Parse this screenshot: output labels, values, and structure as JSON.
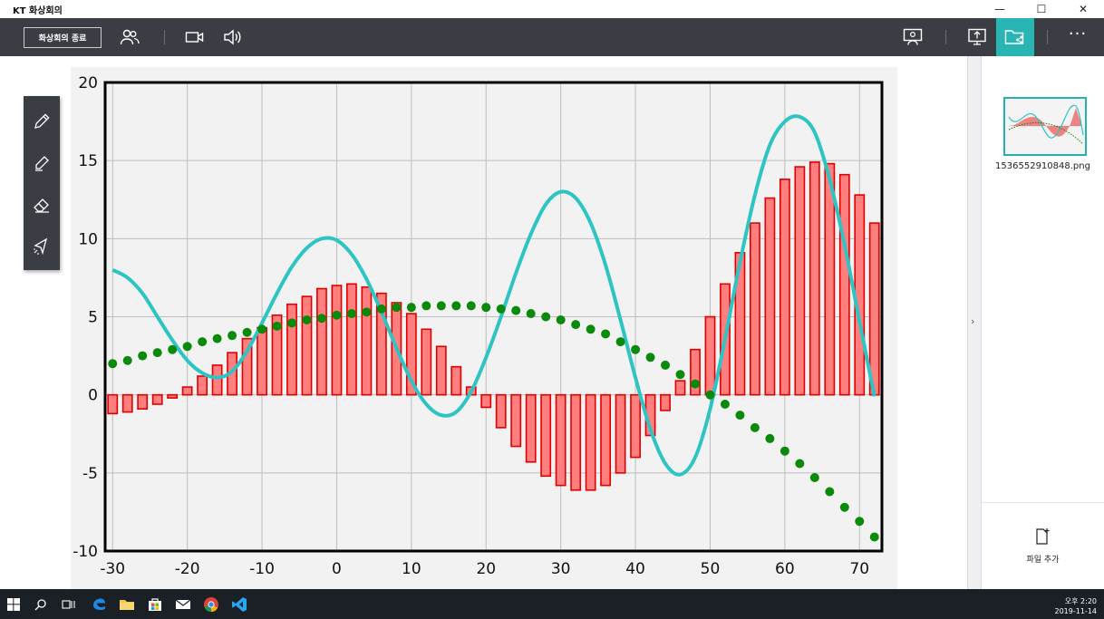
{
  "window": {
    "title": "KT 화상회의",
    "minimize": "—",
    "maximize": "☐",
    "close": "✕"
  },
  "toolbar": {
    "end_meeting_label": "화상회의 종료",
    "icons": [
      "participants-icon",
      "camera-icon",
      "speaker-icon",
      "presenter-icon",
      "screen-share-icon",
      "file-share-icon",
      "more-icon"
    ],
    "more_label": "···",
    "accent": "#28b5b4"
  },
  "drawing_tools": [
    "pen-icon",
    "highlighter-icon",
    "eraser-icon",
    "laser-pointer-icon"
  ],
  "side_panel": {
    "thumbnail_file": "1536552910848.png",
    "add_file_label": "파일 추가",
    "collapse_glyph": "›"
  },
  "taskbar": {
    "time": "오후 2:20",
    "date": "2019-11-14",
    "icons": [
      "windows-start-icon",
      "search-icon",
      "task-view-icon",
      "edge-icon",
      "file-explorer-icon",
      "store-icon",
      "mail-icon",
      "chrome-icon",
      "vscode-icon"
    ]
  },
  "chart_data": {
    "type": "bar+line+scatter",
    "xlim": [
      -31,
      73
    ],
    "ylim": [
      -10,
      20
    ],
    "xticks": [
      "-30",
      "-20",
      "-10",
      "0",
      "10",
      "20",
      "30",
      "40",
      "50",
      "60",
      "70"
    ],
    "yticks": [
      "-10",
      "-5",
      "0",
      "5",
      "10",
      "15",
      "20"
    ],
    "grid": true,
    "colors": {
      "bar_fill": "#ff7f7f",
      "bar_edge": "#e00000",
      "line": "#2ec4c4",
      "dots": "#0a8a0a"
    },
    "bars": {
      "x": [
        -30,
        -28,
        -26,
        -24,
        -22,
        -20,
        -18,
        -16,
        -14,
        -12,
        -10,
        -8,
        -6,
        -4,
        -2,
        0,
        2,
        4,
        6,
        8,
        10,
        12,
        14,
        16,
        18,
        20,
        22,
        24,
        26,
        28,
        30,
        32,
        34,
        36,
        38,
        40,
        42,
        44,
        46,
        48,
        50,
        52,
        54,
        56,
        58,
        60,
        62,
        64,
        66,
        68,
        70,
        72
      ],
      "values": [
        -1.2,
        -1.1,
        -0.9,
        -0.6,
        -0.2,
        0.5,
        1.2,
        1.9,
        2.7,
        3.6,
        4.3,
        5.1,
        5.8,
        6.3,
        6.8,
        7.0,
        7.1,
        6.9,
        6.5,
        5.9,
        5.2,
        4.2,
        3.1,
        1.8,
        0.5,
        -0.8,
        -2.1,
        -3.3,
        -4.3,
        -5.2,
        -5.8,
        -6.1,
        -6.1,
        -5.8,
        -5.0,
        -4.0,
        -2.6,
        -1.0,
        0.9,
        2.9,
        5.0,
        7.1,
        9.1,
        11.0,
        12.6,
        13.8,
        14.6,
        14.9,
        14.8,
        14.1,
        12.8,
        11.0
      ]
    },
    "line": {
      "x": [
        -30,
        -28,
        -26,
        -24,
        -22,
        -20,
        -18,
        -16,
        -14,
        -12,
        -10,
        -8,
        -6,
        -4,
        -2,
        0,
        2,
        4,
        6,
        8,
        10,
        12,
        14,
        16,
        18,
        20,
        22,
        24,
        26,
        28,
        30,
        32,
        34,
        36,
        38,
        40,
        42,
        44,
        46,
        48,
        50,
        52,
        54,
        56,
        58,
        60,
        62,
        64,
        66,
        68,
        70,
        72
      ],
      "y": [
        8.0,
        7.5,
        6.5,
        5.0,
        3.5,
        2.2,
        1.4,
        1.1,
        1.5,
        2.8,
        4.6,
        6.5,
        8.2,
        9.4,
        10.0,
        9.9,
        9.0,
        7.4,
        5.3,
        3.0,
        0.9,
        -0.6,
        -1.3,
        -1.1,
        0.2,
        2.4,
        5.0,
        7.8,
        10.3,
        12.2,
        13.0,
        12.6,
        11.0,
        8.3,
        4.8,
        1.1,
        -2.2,
        -4.4,
        -5.1,
        -4.0,
        -0.9,
        3.6,
        8.5,
        12.8,
        16.0,
        17.5,
        17.8,
        16.8,
        13.8,
        9.6,
        4.7,
        -0.1
      ]
    },
    "dots": {
      "x": [
        -30,
        -28,
        -26,
        -24,
        -22,
        -20,
        -18,
        -16,
        -14,
        -12,
        -10,
        -8,
        -6,
        -4,
        -2,
        0,
        2,
        4,
        6,
        8,
        10,
        12,
        14,
        16,
        18,
        20,
        22,
        24,
        26,
        28,
        30,
        32,
        34,
        36,
        38,
        40,
        42,
        44,
        46,
        48,
        50,
        52,
        54,
        56,
        58,
        60,
        62,
        64,
        66,
        68,
        70,
        72
      ],
      "y": [
        2.0,
        2.2,
        2.5,
        2.7,
        2.9,
        3.1,
        3.4,
        3.6,
        3.8,
        4.0,
        4.2,
        4.4,
        4.6,
        4.8,
        4.9,
        5.1,
        5.2,
        5.3,
        5.5,
        5.6,
        5.6,
        5.7,
        5.7,
        5.7,
        5.7,
        5.6,
        5.5,
        5.4,
        5.2,
        5.0,
        4.8,
        4.5,
        4.2,
        3.9,
        3.4,
        2.9,
        2.4,
        1.9,
        1.3,
        0.7,
        0.0,
        -0.6,
        -1.3,
        -2.1,
        -2.8,
        -3.6,
        -4.4,
        -5.3,
        -6.2,
        -7.2,
        -8.1,
        -9.1
      ]
    }
  }
}
